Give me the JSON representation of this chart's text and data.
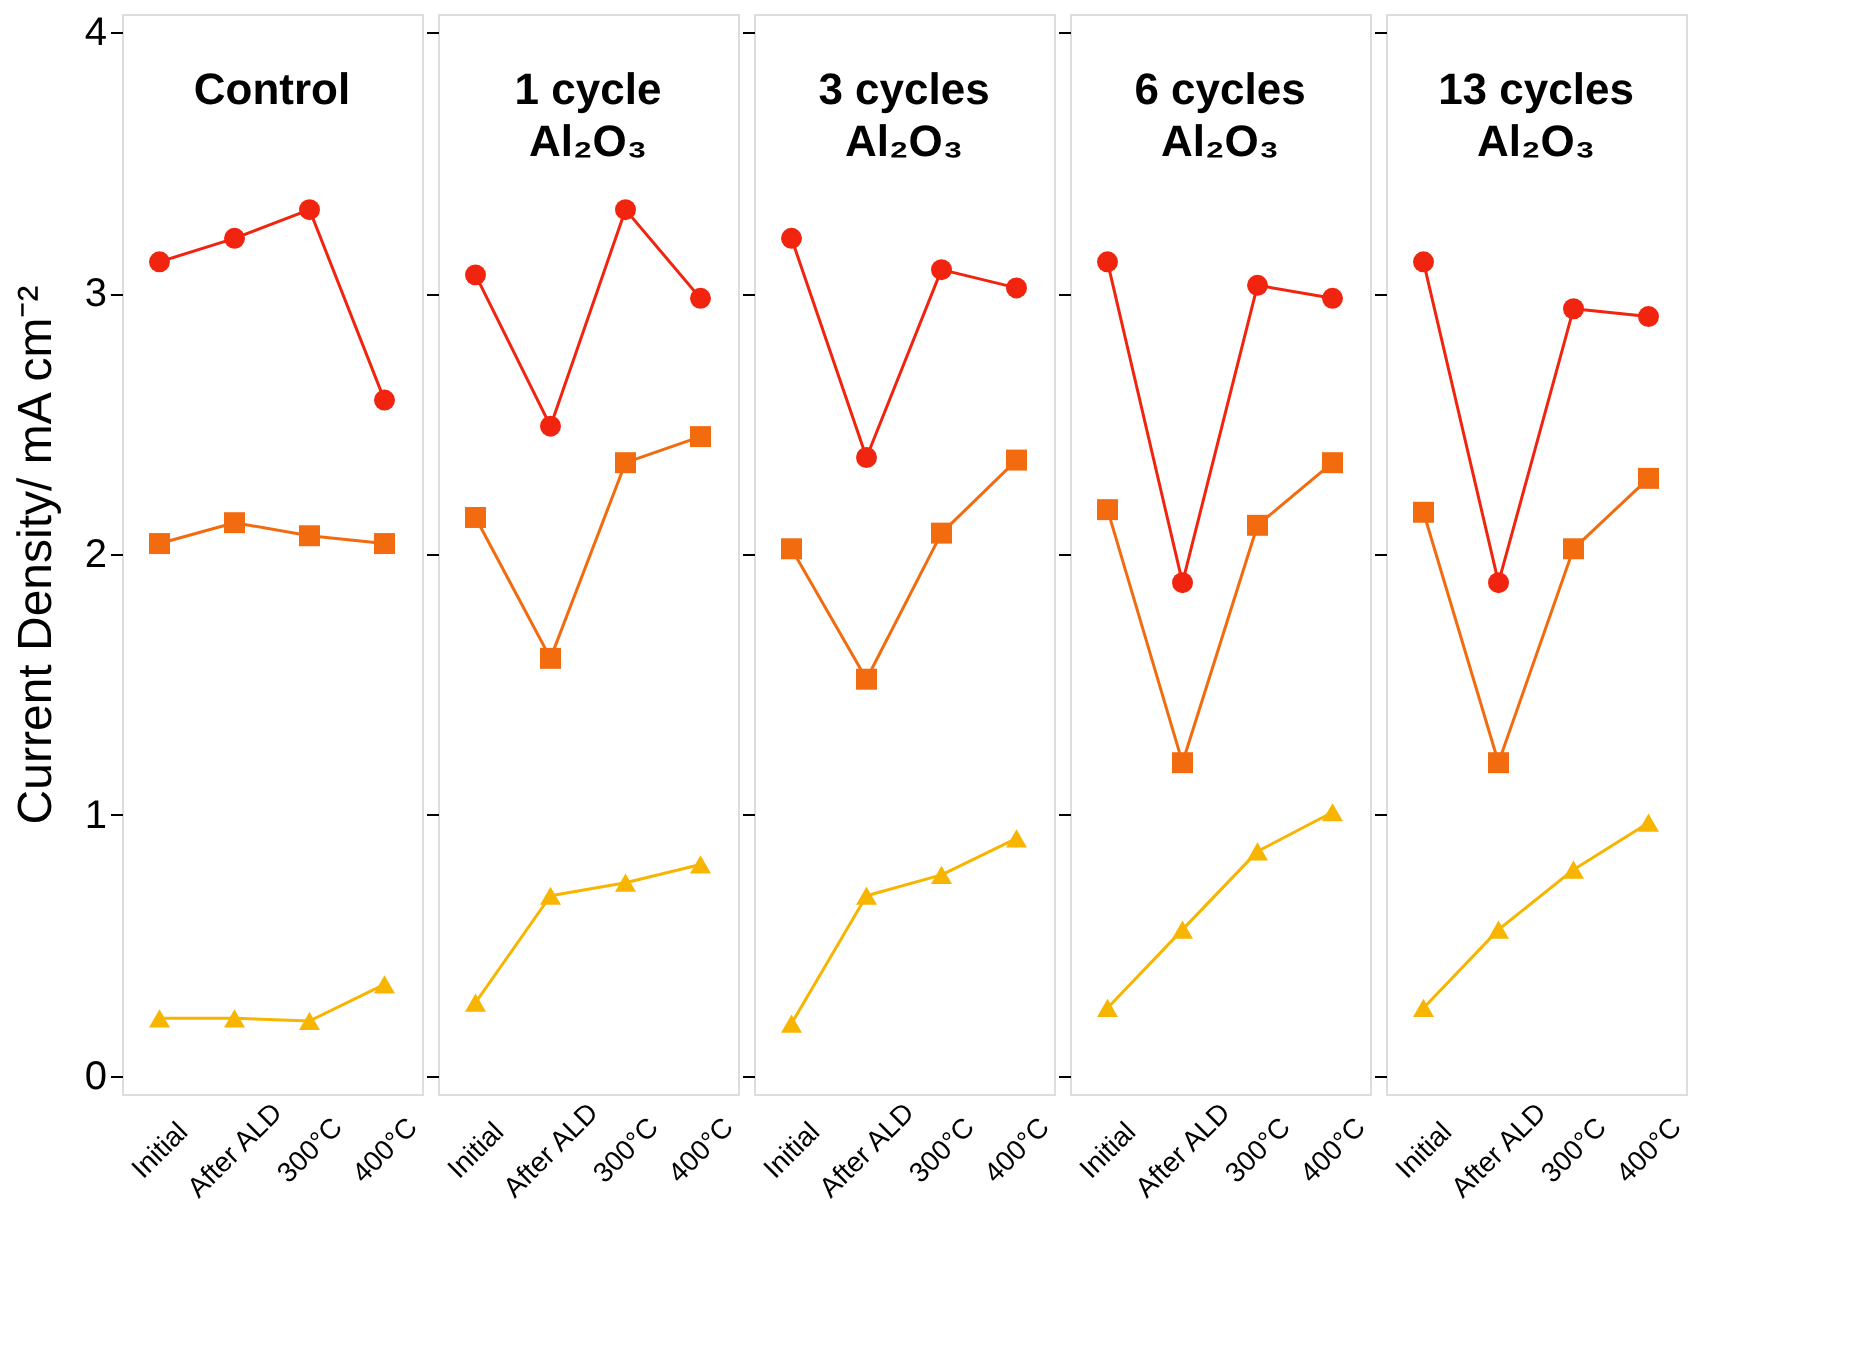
{
  "chart_data": [
    {
      "type": "line",
      "title": "Control",
      "ylabel": "Current Density/ mA cm⁻²",
      "categories": [
        "Initial",
        "After ALD",
        "300°C",
        "400°C"
      ],
      "ylim": [
        -0.07,
        4.07
      ],
      "yticks": [
        0,
        1,
        2,
        3,
        4
      ],
      "grid": false,
      "series": [
        {
          "color": "#f0240f",
          "marker": "circle",
          "values": [
            3.12,
            3.21,
            3.32,
            2.59
          ]
        },
        {
          "color": "#f26b0f",
          "marker": "square",
          "values": [
            2.04,
            2.12,
            2.07,
            2.04
          ]
        },
        {
          "color": "#f7b500",
          "marker": "triangle",
          "values": [
            0.22,
            0.22,
            0.21,
            0.35
          ]
        }
      ]
    },
    {
      "type": "line",
      "title": "1 cycle\nAl₂O₃",
      "categories": [
        "Initial",
        "After ALD",
        "300°C",
        "400°C"
      ],
      "ylim": [
        -0.07,
        4.07
      ],
      "yticks": [
        0,
        1,
        2,
        3,
        4
      ],
      "tick_labels": "x",
      "grid": false,
      "series": [
        {
          "color": "#f0240f",
          "marker": "circle",
          "values": [
            3.07,
            2.49,
            3.32,
            2.98
          ]
        },
        {
          "color": "#f26b0f",
          "marker": "square",
          "values": [
            2.14,
            1.6,
            2.35,
            2.45
          ]
        },
        {
          "color": "#f7b500",
          "marker": "triangle",
          "values": [
            0.28,
            0.69,
            0.74,
            0.81
          ]
        }
      ]
    },
    {
      "type": "line",
      "title": "3 cycles\nAl₂O₃",
      "categories": [
        "Initial",
        "After ALD",
        "300°C",
        "400°C"
      ],
      "ylim": [
        -0.07,
        4.07
      ],
      "yticks": [
        0,
        1,
        2,
        3,
        4
      ],
      "tick_labels": "x",
      "grid": false,
      "series": [
        {
          "color": "#f0240f",
          "marker": "circle",
          "values": [
            3.21,
            2.37,
            3.09,
            3.02
          ]
        },
        {
          "color": "#f26b0f",
          "marker": "square",
          "values": [
            2.02,
            1.52,
            2.08,
            2.36
          ]
        },
        {
          "color": "#f7b500",
          "marker": "triangle",
          "values": [
            0.2,
            0.69,
            0.77,
            0.91
          ]
        }
      ]
    },
    {
      "type": "line",
      "title": "6 cycles\nAl₂O₃",
      "categories": [
        "Initial",
        "After ALD",
        "300°C",
        "400°C"
      ],
      "ylim": [
        -0.07,
        4.07
      ],
      "yticks": [
        0,
        1,
        2,
        3,
        4
      ],
      "tick_labels": "x",
      "grid": false,
      "series": [
        {
          "color": "#f0240f",
          "marker": "circle",
          "values": [
            3.12,
            1.89,
            3.03,
            2.98
          ]
        },
        {
          "color": "#f26b0f",
          "marker": "square",
          "values": [
            2.17,
            1.2,
            2.11,
            2.35
          ]
        },
        {
          "color": "#f7b500",
          "marker": "triangle",
          "values": [
            0.26,
            0.56,
            0.86,
            1.01
          ]
        }
      ]
    },
    {
      "type": "line",
      "title": "13 cycles\nAl₂O₃",
      "categories": [
        "Initial",
        "After ALD",
        "300°C",
        "400°C"
      ],
      "ylim": [
        -0.07,
        4.07
      ],
      "yticks": [
        0,
        1,
        2,
        3,
        4
      ],
      "tick_labels": "x",
      "grid": false,
      "series": [
        {
          "color": "#f0240f",
          "marker": "circle",
          "values": [
            3.12,
            1.89,
            2.94,
            2.91
          ]
        },
        {
          "color": "#f26b0f",
          "marker": "square",
          "values": [
            2.16,
            1.2,
            2.02,
            2.29
          ]
        },
        {
          "color": "#f7b500",
          "marker": "triangle",
          "values": [
            0.26,
            0.56,
            0.79,
            0.97
          ]
        }
      ]
    }
  ]
}
